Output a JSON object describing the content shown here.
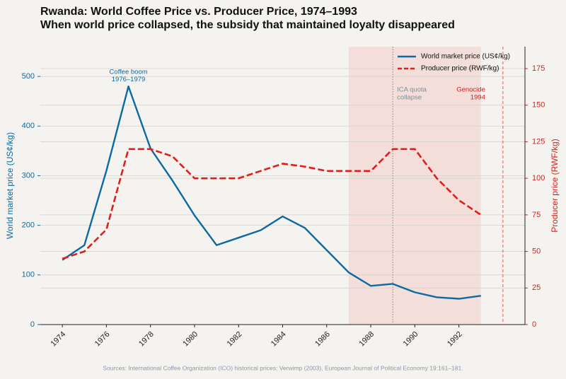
{
  "chart_data": {
    "type": "line",
    "title": "Rwanda: World Coffee Price vs. Producer Price, 1974–1993",
    "subtitle": "When world price collapsed, the subsidy that maintained loyalty disappeared",
    "ylabel": "World market price (US¢/kg)",
    "y2label": "Producer price (RWF/kg)",
    "source": "Sources: International Coffee Organization (ICO) historical prices; Verwimp (2003), European Journal of Political Economy 19:161–181.",
    "x": [
      1974,
      1975,
      1976,
      1977,
      1978,
      1979,
      1980,
      1981,
      1982,
      1983,
      1984,
      1985,
      1986,
      1987,
      1988,
      1989,
      1990,
      1991,
      1992,
      1993
    ],
    "series": [
      {
        "name": "World market price (US¢/kg)",
        "color": "#0b6aa2",
        "dash": "solid",
        "values": [
          130,
          160,
          310,
          480,
          355,
          290,
          220,
          160,
          175,
          190,
          218,
          195,
          150,
          105,
          78,
          82,
          65,
          55,
          52,
          58
        ]
      },
      {
        "name": "Producer price (RWF/kg)",
        "color": "#e01e1a",
        "dash": "dashed",
        "axis": "y2",
        "values": [
          45,
          50,
          65,
          120,
          120,
          115,
          100,
          100,
          100,
          105,
          110,
          108,
          105,
          105,
          105,
          120,
          120,
          100,
          85,
          75
        ]
      }
    ],
    "xlim": [
      1973,
      1995
    ],
    "xticks": [
      1974,
      1976,
      1978,
      1980,
      1982,
      1984,
      1986,
      1988,
      1990,
      1992
    ],
    "ylim": [
      0,
      560
    ],
    "yticks": [
      0,
      100,
      200,
      300,
      400,
      500
    ],
    "y2lim": [
      0,
      190
    ],
    "y2ticks": [
      0,
      25,
      50,
      75,
      100,
      125,
      150,
      175
    ],
    "grid": true,
    "legend": "upper right",
    "shaded_span": {
      "range": [
        1987,
        1993
      ],
      "color": "#f2c9c4"
    },
    "vlines": [
      {
        "x": 1989,
        "color": "#888888",
        "style": "dotted",
        "label": [
          "ICA quota",
          "collapse"
        ],
        "label_color": "#7f8c99"
      },
      {
        "x": 1994,
        "color": "#e05555",
        "style": "dashed",
        "label": [
          "Genocide",
          "1994"
        ],
        "label_color": "#d0201c"
      }
    ],
    "annotations": [
      {
        "x": 1977,
        "y": 480,
        "lines": [
          "Coffee boom",
          "1976–1979"
        ],
        "color": "#0b6aa2"
      }
    ]
  }
}
